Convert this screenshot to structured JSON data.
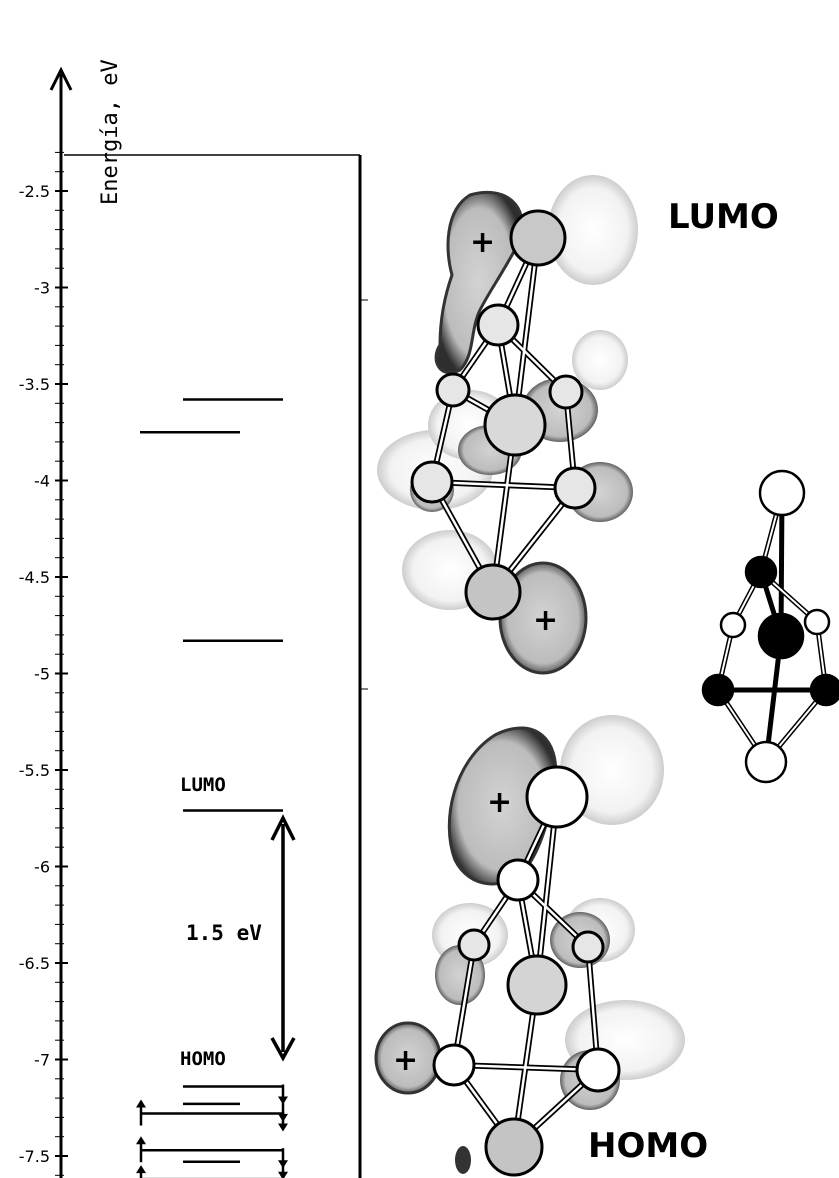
{
  "diagram": {
    "axis": {
      "label": "Energía, eV",
      "ticks": [
        "-2.5",
        "-3",
        "-3.5",
        "-4",
        "-4.5",
        "-5",
        "-5.5",
        "-6",
        "-6.5",
        "-7",
        "-7.5"
      ],
      "tick_values": [
        -2.5,
        -3,
        -3.5,
        -4,
        -4.5,
        -5,
        -5.5,
        -6,
        -6.5,
        -7,
        -7.5
      ],
      "range": [
        -7.72,
        -2.32
      ]
    },
    "levels": {
      "labels": {
        "lumo": "LUMO",
        "homo": "HOMO"
      },
      "gap_label": "1.5 eV",
      "unoccupied": [
        -3.58,
        -3.75,
        -4.83,
        -5.71
      ],
      "occupied": [
        -7.14,
        -7.23,
        -7.28,
        -7.47,
        -7.53,
        -7.62
      ]
    },
    "orbitals": {
      "lumo_label": "LUMO",
      "homo_label": "HOMO",
      "sign_symbol": "+"
    },
    "colors": {
      "ink": "#000000",
      "lobe_dark": "#c8c8c8",
      "lobe_light": "#efefef",
      "atom_gray": "#c4c4c4",
      "atom_black": "#000000"
    }
  }
}
